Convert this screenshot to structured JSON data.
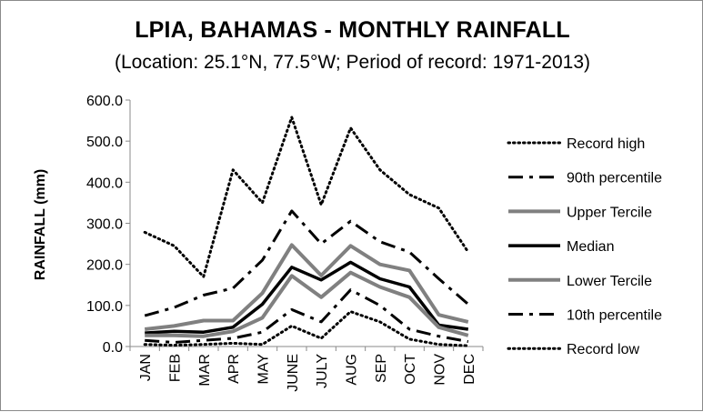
{
  "chart_data": {
    "type": "line",
    "title": "LPIA, BAHAMAS - MONTHLY RAINFALL",
    "subtitle": "(Location: 25.1°N, 77.5°W; Period of record: 1971-2013)",
    "ylabel": "RAINFALL (mm)",
    "xlabel": "",
    "ylim": [
      0,
      600
    ],
    "yticks": [
      "0.0",
      "100.0",
      "200.0",
      "300.0",
      "400.0",
      "500.0",
      "600.0"
    ],
    "categories": [
      "JAN",
      "FEB",
      "MAR",
      "APR",
      "MAY",
      "JUNE",
      "JULY",
      "AUG",
      "SEP",
      "OCT",
      "NOV",
      "DEC"
    ],
    "grid": false,
    "legend_position": "right",
    "series": [
      {
        "name": "Record high",
        "style": "dotted",
        "color": "#000000",
        "values": [
          278,
          245,
          170,
          430,
          350,
          558,
          345,
          532,
          430,
          370,
          337,
          230
        ]
      },
      {
        "name": "90th percentile",
        "style": "dashdot",
        "color": "#000000",
        "values": [
          75,
          95,
          125,
          142,
          210,
          330,
          250,
          305,
          255,
          230,
          165,
          103
        ]
      },
      {
        "name": "Upper Tercile",
        "style": "solid-gray",
        "color": "#808080",
        "values": [
          42,
          50,
          63,
          63,
          130,
          247,
          173,
          245,
          200,
          185,
          77,
          60
        ]
      },
      {
        "name": "Median",
        "style": "solid-black",
        "color": "#000000",
        "values": [
          33,
          37,
          35,
          47,
          103,
          193,
          162,
          205,
          165,
          145,
          52,
          42
        ]
      },
      {
        "name": "Lower Tercile",
        "style": "solid-gray",
        "color": "#808080",
        "values": [
          27,
          27,
          25,
          37,
          70,
          172,
          120,
          180,
          145,
          120,
          47,
          27
        ]
      },
      {
        "name": "10th percentile",
        "style": "dashdot",
        "color": "#000000",
        "values": [
          15,
          10,
          15,
          20,
          35,
          90,
          60,
          138,
          100,
          42,
          25,
          12
        ]
      },
      {
        "name": "Record low",
        "style": "dotted",
        "color": "#000000",
        "values": [
          5,
          3,
          5,
          8,
          5,
          50,
          20,
          85,
          60,
          18,
          5,
          2
        ]
      }
    ]
  }
}
